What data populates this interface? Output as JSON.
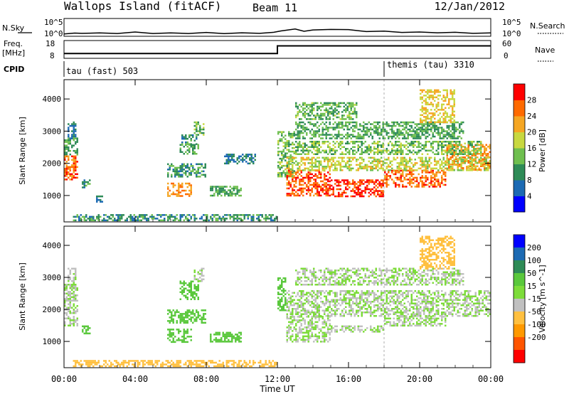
{
  "header": {
    "station": "Wallops Island (fitACF)",
    "beam": "Beam 11",
    "date": "12/Jan/2012"
  },
  "noise_panel": {
    "left_label": "N.Sky",
    "right_label": "N.Search",
    "left_ticks": [
      "10^5",
      "10^0"
    ],
    "right_ticks": [
      "10^5",
      "10^0"
    ],
    "tick_values": [
      5,
      0
    ],
    "line_style": "dotted",
    "n_sky_log10": [
      [
        0,
        0.4
      ],
      [
        0.6,
        0.45
      ],
      [
        1.0,
        0.6
      ],
      [
        2.0,
        0.5
      ],
      [
        3.0,
        0.55
      ],
      [
        4.0,
        0.8
      ],
      [
        5.0,
        0.55
      ],
      [
        6.0,
        0.5
      ],
      [
        7.0,
        0.55
      ],
      [
        8.0,
        0.65
      ],
      [
        9.0,
        0.5
      ],
      [
        10.0,
        0.55
      ],
      [
        11.0,
        0.6
      ],
      [
        11.8,
        0.7
      ],
      [
        12.2,
        1.4
      ],
      [
        13.0,
        1.8
      ],
      [
        13.5,
        1.3
      ],
      [
        14.0,
        1.5
      ],
      [
        15.0,
        1.9
      ],
      [
        16.0,
        1.6
      ],
      [
        17.0,
        1.2
      ],
      [
        18.0,
        1.1
      ],
      [
        19.0,
        0.9
      ],
      [
        20.0,
        0.8
      ],
      [
        21.0,
        0.8
      ],
      [
        22.0,
        0.7
      ],
      [
        23.0,
        0.6
      ],
      [
        24.0,
        0.5
      ]
    ]
  },
  "freq_panel": {
    "left_label": "Freq.",
    "left_unit": "[MHz]",
    "left_ticks": [
      "18",
      "8"
    ],
    "left_tick_values": [
      18,
      8
    ],
    "right_label": "Nave",
    "right_ticks": [
      "60",
      "0"
    ],
    "right_tick_values": [
      60,
      0
    ],
    "line_style": "dotted",
    "freq_mhz": [
      [
        0,
        10.3
      ],
      [
        12.0,
        10.3
      ],
      [
        12.0,
        15.4
      ],
      [
        24.0,
        15.4
      ]
    ]
  },
  "cpid_panel": {
    "label": "CPID",
    "segments": [
      {
        "start_hour": 0.0,
        "text": "tau (fast) 503"
      },
      {
        "start_hour": 18.0,
        "text": "themis (tau) 3310"
      }
    ]
  },
  "x_axis": {
    "title": "Time UT",
    "tick_labels": [
      "00:00",
      "04:00",
      "08:00",
      "12:00",
      "16:00",
      "20:00",
      "00:00"
    ],
    "tick_hours": [
      0,
      4,
      8,
      12,
      16,
      20,
      24
    ],
    "range_hours": [
      0,
      24
    ]
  },
  "chart_data": [
    {
      "type": "heatmap",
      "name": "power",
      "ylabel": "Slant Range [km]",
      "yticks": [
        "4000",
        "3000",
        "2000",
        "1000"
      ],
      "ytick_values": [
        4000,
        3000,
        2000,
        1000
      ],
      "ylim": [
        180,
        4600
      ],
      "colorbar": {
        "label": "Power [dB]",
        "tick_labels": [
          "28",
          "24",
          "20",
          "16",
          "12",
          "8",
          "4"
        ],
        "tick_values": [
          28,
          24,
          20,
          16,
          12,
          8,
          4
        ],
        "range": [
          0,
          32
        ],
        "colors": [
          "#0000ff",
          "#1c6ab3",
          "#2e8b57",
          "#6fbf4f",
          "#c8d840",
          "#f5a623",
          "#ff6a00",
          "#ff0000"
        ]
      },
      "regions": [
        {
          "x": [
            0.0,
            0.8
          ],
          "y": [
            1500,
            2300
          ],
          "value": 26
        },
        {
          "x": [
            0.0,
            0.8
          ],
          "y": [
            2300,
            2800
          ],
          "value": 12
        },
        {
          "x": [
            0.2,
            0.7
          ],
          "y": [
            2800,
            3300
          ],
          "value": 8
        },
        {
          "x": [
            1.0,
            1.5
          ],
          "y": [
            1250,
            1500
          ],
          "value": 10
        },
        {
          "x": [
            1.8,
            2.2
          ],
          "y": [
            800,
            1000
          ],
          "value": 8
        },
        {
          "x": [
            5.8,
            7.2
          ],
          "y": [
            1000,
            1400
          ],
          "value": 24
        },
        {
          "x": [
            5.8,
            8.0
          ],
          "y": [
            1600,
            2000
          ],
          "value": 10
        },
        {
          "x": [
            6.5,
            7.6
          ],
          "y": [
            2300,
            2600
          ],
          "value": 12
        },
        {
          "x": [
            6.6,
            7.5
          ],
          "y": [
            2600,
            2900
          ],
          "value": 10
        },
        {
          "x": [
            7.3,
            7.9
          ],
          "y": [
            2900,
            3300
          ],
          "value": 14
        },
        {
          "x": [
            8.2,
            10.0
          ],
          "y": [
            1000,
            1300
          ],
          "value": 12
        },
        {
          "x": [
            9.0,
            10.8
          ],
          "y": [
            2000,
            2300
          ],
          "value": 8
        },
        {
          "x": [
            0.5,
            12.0
          ],
          "y": [
            200,
            420
          ],
          "value": 10
        },
        {
          "x": [
            12.0,
            13.0
          ],
          "y": [
            1600,
            3000
          ],
          "value": 14
        },
        {
          "x": [
            12.5,
            15.0
          ],
          "y": [
            1000,
            1800
          ],
          "value": 27
        },
        {
          "x": [
            15.0,
            18.0
          ],
          "y": [
            950,
            1500
          ],
          "value": 29
        },
        {
          "x": [
            18.0,
            21.5
          ],
          "y": [
            1250,
            1800
          ],
          "value": 26
        },
        {
          "x": [
            21.5,
            24.0
          ],
          "y": [
            1800,
            2600
          ],
          "value": 24
        },
        {
          "x": [
            12.5,
            24.0
          ],
          "y": [
            1800,
            2200
          ],
          "value": 18
        },
        {
          "x": [
            13.0,
            23.5
          ],
          "y": [
            2300,
            2700
          ],
          "value": 14
        },
        {
          "x": [
            13.0,
            22.5
          ],
          "y": [
            2800,
            3300
          ],
          "value": 12
        },
        {
          "x": [
            13.0,
            16.5
          ],
          "y": [
            3400,
            3900
          ],
          "value": 13
        },
        {
          "x": [
            20.0,
            22.0
          ],
          "y": [
            3300,
            4300
          ],
          "value": 20
        }
      ]
    },
    {
      "type": "heatmap",
      "name": "velocity",
      "ylabel": "Slant Range [km]",
      "yticks": [
        "4000",
        "3000",
        "2000",
        "1000"
      ],
      "ytick_values": [
        4000,
        3000,
        2000,
        1000
      ],
      "ylim": [
        180,
        4600
      ],
      "colorbar": {
        "label": "Velocity [m s^-1]",
        "tick_labels": [
          "200",
          "100",
          "50",
          "15",
          "-15",
          "-50",
          "-100",
          "-200"
        ],
        "tick_values": [
          200,
          100,
          50,
          15,
          -15,
          -50,
          -100,
          -200
        ],
        "colors": [
          "#0000ff",
          "#1c6ab3",
          "#2e8b57",
          "#5ac83c",
          "#7ddc3a",
          "#c0c0c0",
          "#ffc040",
          "#ff9900",
          "#ff5500",
          "#ff0000"
        ]
      },
      "regions": [
        {
          "x": [
            0.0,
            0.8
          ],
          "y": [
            1500,
            2800
          ],
          "value": 0
        },
        {
          "x": [
            0.2,
            0.7
          ],
          "y": [
            2800,
            3300
          ],
          "value": 0
        },
        {
          "x": [
            1.0,
            1.5
          ],
          "y": [
            1250,
            1500
          ],
          "value": 30
        },
        {
          "x": [
            5.8,
            7.2
          ],
          "y": [
            1000,
            1400
          ],
          "value": 30
        },
        {
          "x": [
            5.8,
            8.0
          ],
          "y": [
            1600,
            2000
          ],
          "value": 30
        },
        {
          "x": [
            6.5,
            7.6
          ],
          "y": [
            2300,
            2900
          ],
          "value": 30
        },
        {
          "x": [
            7.3,
            7.9
          ],
          "y": [
            2900,
            3300
          ],
          "value": 0
        },
        {
          "x": [
            8.2,
            10.0
          ],
          "y": [
            1000,
            1300
          ],
          "value": 30
        },
        {
          "x": [
            0.5,
            12.0
          ],
          "y": [
            200,
            420
          ],
          "value": -30
        },
        {
          "x": [
            12.0,
            12.5
          ],
          "y": [
            2000,
            3000
          ],
          "value": 40
        },
        {
          "x": [
            12.5,
            15.0
          ],
          "y": [
            1000,
            1800
          ],
          "value": 0
        },
        {
          "x": [
            15.0,
            18.0
          ],
          "y": [
            1300,
            1500
          ],
          "value": 0
        },
        {
          "x": [
            18.0,
            21.5
          ],
          "y": [
            1500,
            1800
          ],
          "value": 0
        },
        {
          "x": [
            12.5,
            24.0
          ],
          "y": [
            1800,
            2600
          ],
          "value": 0
        },
        {
          "x": [
            13.0,
            22.5
          ],
          "y": [
            2800,
            3300
          ],
          "value": 0
        },
        {
          "x": [
            20.0,
            22.0
          ],
          "y": [
            3300,
            4300
          ],
          "value": -20
        }
      ]
    }
  ]
}
